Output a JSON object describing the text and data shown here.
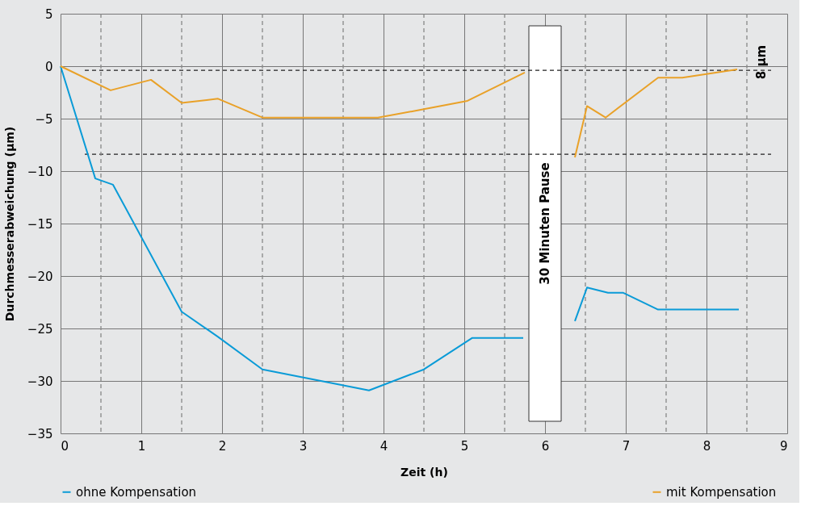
{
  "chart_data": {
    "type": "line",
    "xlabel": "Zeit (h)",
    "ylabel": "Durchmesserabweichung (µm)",
    "xlim": [
      0,
      9
    ],
    "ylim": [
      -35,
      5
    ],
    "xticks": [
      0,
      1,
      2,
      3,
      4,
      5,
      6,
      7,
      8,
      9
    ],
    "yticks": [
      5,
      0,
      -5,
      -10,
      -15,
      -20,
      -25,
      -30,
      -35
    ],
    "grid": true,
    "legend": "bottom",
    "marker": "none",
    "line_style": "solid",
    "series": [
      {
        "name": "ohne Kompensation",
        "color": "#0a9bd7",
        "x": [
          0,
          0.43,
          0.65,
          1.5,
          1.95,
          2.5,
          3.82,
          4.5,
          5.1,
          5.73,
          6.0,
          6.37,
          6.52,
          6.78,
          6.97,
          7.4,
          8.4
        ],
        "values": [
          0,
          -10.7,
          -11.3,
          -23.4,
          -25.8,
          -28.9,
          -30.9,
          -28.9,
          -25.9,
          -25.9,
          null,
          -24.3,
          -21.1,
          -21.6,
          -21.6,
          -23.2,
          -23.2
        ]
      },
      {
        "name": "mit Kompensation",
        "color": "#e9a128",
        "x": [
          0,
          0.62,
          1.12,
          1.5,
          1.95,
          2.5,
          3.93,
          4.5,
          5.04,
          5.75,
          6.0,
          6.37,
          6.52,
          6.75,
          7.4,
          7.7,
          8.38
        ],
        "values": [
          0,
          -2.3,
          -1.3,
          -3.5,
          -3.1,
          -4.9,
          -4.9,
          -4.1,
          -3.3,
          -0.6,
          null,
          -8.7,
          -3.8,
          -4.9,
          -1.1,
          -1.1,
          -0.3
        ]
      }
    ],
    "ref_lines": [
      {
        "axis": "y",
        "value": -0.4,
        "label": null,
        "color": "#222222",
        "line_style": "dashed"
      },
      {
        "axis": "y",
        "value": -8.4,
        "label": null,
        "color": "#222222",
        "line_style": "dashed"
      },
      {
        "axis": "x",
        "value": 0.5,
        "label": null,
        "color": "#888888",
        "line_style": "dashed"
      },
      {
        "axis": "x",
        "value": 1.5,
        "label": null,
        "color": "#888888",
        "line_style": "dashed"
      },
      {
        "axis": "x",
        "value": 2.5,
        "label": null,
        "color": "#888888",
        "line_style": "dashed"
      },
      {
        "axis": "x",
        "value": 3.5,
        "label": null,
        "color": "#888888",
        "line_style": "dashed"
      },
      {
        "axis": "x",
        "value": 4.5,
        "label": null,
        "color": "#888888",
        "line_style": "dashed"
      },
      {
        "axis": "x",
        "value": 5.5,
        "label": null,
        "color": "#888888",
        "line_style": "dashed"
      },
      {
        "axis": "x",
        "value": 6.5,
        "label": null,
        "color": "#888888",
        "line_style": "dashed"
      },
      {
        "axis": "x",
        "value": 7.5,
        "label": null,
        "color": "#888888",
        "line_style": "dashed"
      },
      {
        "axis": "x",
        "value": 8.5,
        "label": null,
        "color": "#888888",
        "line_style": "dashed"
      }
    ],
    "bands": [
      {
        "axis": "x",
        "from": 5.8,
        "to": 6.2,
        "label": "30 Minuten Pause",
        "color": "#ffffff"
      }
    ],
    "annotations": [
      "8 µm"
    ]
  }
}
